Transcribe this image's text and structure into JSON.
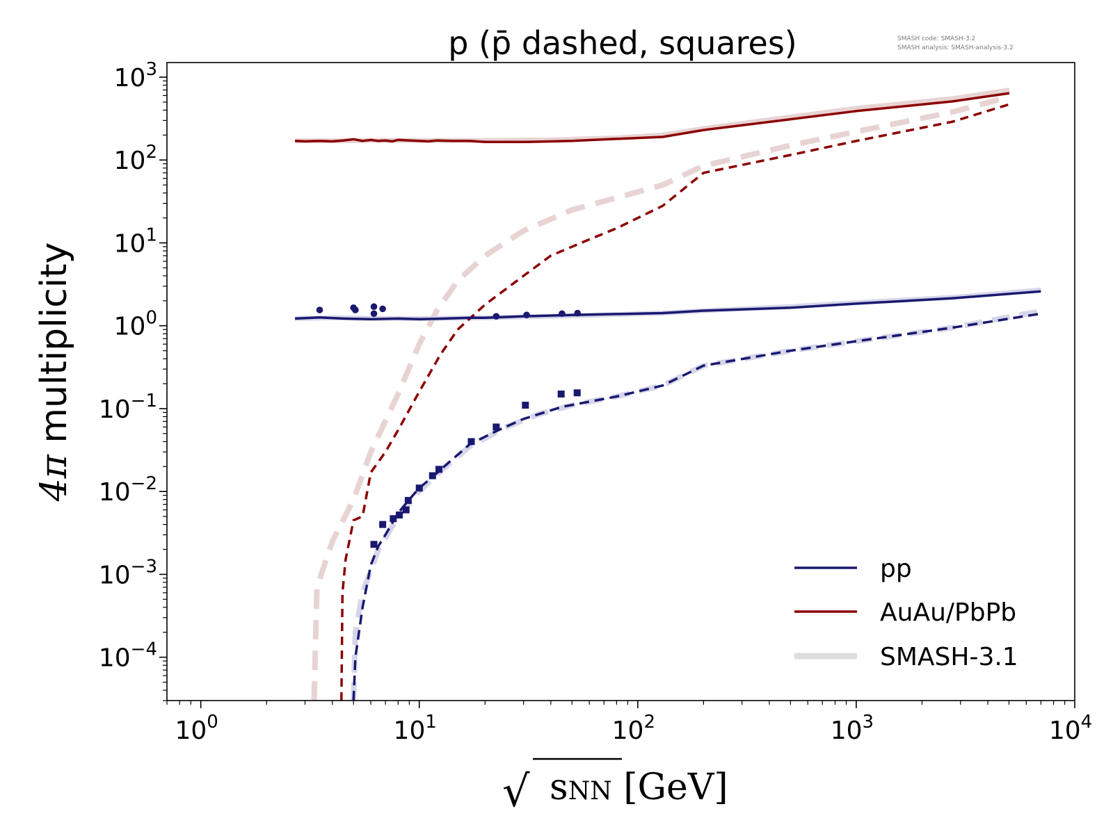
{
  "chart_data": {
    "type": "line",
    "title": "p (p̄ dashed, squares)",
    "credits": [
      "SMASH code:      SMASH-3.2",
      "SMASH analysis:  SMASH-analysis-3.2"
    ],
    "xlabel": {
      "root": "√",
      "var": "s",
      "sub": "NN",
      "unit": " [GeV]"
    },
    "ylabel": {
      "main": "4π",
      "rest": " multiplicity"
    },
    "xscale": "log",
    "yscale": "log",
    "xlim": [
      0.7,
      10000
    ],
    "ylim": [
      3e-05,
      1500
    ],
    "xticks": [
      {
        "value": 1,
        "base": "10",
        "exp": "0"
      },
      {
        "value": 10,
        "base": "10",
        "exp": "1"
      },
      {
        "value": 100,
        "base": "10",
        "exp": "2"
      },
      {
        "value": 1000,
        "base": "10",
        "exp": "3"
      },
      {
        "value": 10000,
        "base": "10",
        "exp": "4"
      }
    ],
    "yticks": [
      {
        "value": 0.0001,
        "base": "10",
        "exp": "−4"
      },
      {
        "value": 0.001,
        "base": "10",
        "exp": "−3"
      },
      {
        "value": 0.01,
        "base": "10",
        "exp": "−2"
      },
      {
        "value": 0.1,
        "base": "10",
        "exp": "−1"
      },
      {
        "value": 1,
        "base": "10",
        "exp": "0"
      },
      {
        "value": 10,
        "base": "10",
        "exp": "1"
      },
      {
        "value": 100,
        "base": "10",
        "exp": "2"
      },
      {
        "value": 1000,
        "base": "10",
        "exp": "3"
      }
    ],
    "legend": {
      "placement": "lower-right",
      "entries": [
        {
          "label": "pp",
          "color": "#191970",
          "width": 3.5
        },
        {
          "label": "AuAu/PbPb",
          "color": "#8b0000",
          "width": 3.5
        },
        {
          "label": "SMASH-3.1",
          "color": "#dddddd",
          "width": 9
        }
      ]
    },
    "series": [
      {
        "role": "smash31-auau-p",
        "color": "#e8d3d3",
        "width": 7,
        "dash": "",
        "x": [
          2.7,
          4.0,
          6.0,
          10,
          20,
          40,
          80,
          130,
          200,
          500,
          1000,
          2760,
          5020
        ],
        "y": [
          170,
          170,
          172,
          172,
          172,
          175,
          185,
          200,
          240,
          330,
          420,
          550,
          700
        ]
      },
      {
        "role": "smash31-auau-pbar",
        "color": "#e8d3d3",
        "width": 8,
        "dash": "28,16",
        "x": [
          3.3,
          3.4,
          4.0,
          5.0,
          6.0,
          8.0,
          10,
          12,
          15,
          20,
          30,
          50,
          80,
          130,
          200,
          500,
          1000,
          2760,
          5020
        ],
        "y": [
          3e-05,
          0.0007,
          0.0025,
          0.008,
          0.03,
          0.15,
          0.6,
          1.5,
          3.5,
          7,
          14,
          25,
          35,
          50,
          85,
          150,
          220,
          380,
          580
        ]
      },
      {
        "role": "smash31-pp-p",
        "color": "#d6d6ea",
        "width": 7,
        "dash": "",
        "x": [
          2.7,
          4.0,
          6.0,
          10,
          20,
          50,
          130,
          200,
          500,
          1000,
          2760,
          7000
        ],
        "y": [
          1.22,
          1.25,
          1.23,
          1.22,
          1.25,
          1.32,
          1.42,
          1.52,
          1.7,
          1.9,
          2.2,
          2.7
        ]
      },
      {
        "role": "smash31-pp-pbar",
        "color": "#d6d6ea",
        "width": 8,
        "dash": "26,14",
        "x": [
          5.0,
          5.1,
          5.5,
          6.5,
          8.0,
          10,
          12,
          17,
          25,
          35,
          50,
          80,
          130,
          200,
          500,
          1000,
          2760,
          7000
        ],
        "y": [
          3e-05,
          0.0002,
          0.0006,
          0.002,
          0.005,
          0.01,
          0.016,
          0.035,
          0.06,
          0.085,
          0.11,
          0.14,
          0.19,
          0.33,
          0.5,
          0.65,
          0.95,
          1.5
        ]
      },
      {
        "role": "auau-p",
        "color": "#8b0000",
        "width": 3.5,
        "dash": "",
        "x": [
          2.7,
          3.0,
          3.5,
          4.0,
          4.5,
          5.0,
          5.5,
          6.0,
          6.5,
          7.0,
          7.5,
          8.0,
          9.0,
          10,
          11,
          12,
          14,
          17,
          20,
          30,
          50,
          80,
          130,
          200,
          500,
          1000,
          2760,
          5020
        ],
        "y": [
          170,
          168,
          170,
          168,
          172,
          178,
          170,
          175,
          170,
          172,
          168,
          175,
          172,
          170,
          168,
          172,
          170,
          170,
          165,
          165,
          170,
          180,
          190,
          230,
          310,
          390,
          510,
          640
        ]
      },
      {
        "role": "auau-pbar",
        "color": "#8b0000",
        "width": 3.5,
        "dash": "12,8",
        "x": [
          4.4,
          4.45,
          4.6,
          5.0,
          5.5,
          6.0,
          7.0,
          8.0,
          10,
          12.5,
          15,
          20,
          30,
          40,
          60,
          80,
          130,
          200,
          500,
          1000,
          2760,
          5020
        ],
        "y": [
          3e-05,
          0.0006,
          0.0015,
          0.0045,
          0.005,
          0.017,
          0.03,
          0.055,
          0.16,
          0.45,
          0.9,
          1.8,
          4,
          7,
          11,
          15,
          28,
          70,
          115,
          170,
          290,
          470
        ]
      },
      {
        "role": "pp-p",
        "color": "#191970",
        "width": 3.5,
        "dash": "",
        "x": [
          2.7,
          3.5,
          4.5,
          6.0,
          8.0,
          10,
          13,
          17,
          20,
          30,
          50,
          130,
          200,
          500,
          1000,
          2760,
          7000
        ],
        "y": [
          1.22,
          1.26,
          1.22,
          1.2,
          1.22,
          1.2,
          1.22,
          1.25,
          1.25,
          1.3,
          1.35,
          1.42,
          1.52,
          1.65,
          1.85,
          2.15,
          2.6
        ]
      },
      {
        "role": "pp-pbar",
        "color": "#191970",
        "width": 3.5,
        "dash": "14,8",
        "x": [
          5.0,
          5.1,
          5.5,
          6.0,
          6.5,
          7.0,
          8.0,
          9.0,
          10,
          11.5,
          13,
          17,
          23,
          30,
          45,
          80,
          130,
          200,
          500,
          1000,
          2760,
          7000
        ],
        "y": [
          3e-05,
          0.0001,
          0.0004,
          0.0013,
          0.0022,
          0.003,
          0.0055,
          0.008,
          0.011,
          0.015,
          0.02,
          0.037,
          0.055,
          0.075,
          0.105,
          0.14,
          0.19,
          0.33,
          0.5,
          0.65,
          0.95,
          1.4
        ]
      }
    ],
    "markers": [
      {
        "role": "pp-p-data",
        "shape": "circle",
        "color": "#191970",
        "size": 4.8,
        "x": [
          3.5,
          5.0,
          5.1,
          6.2,
          6.2,
          6.8,
          22.5,
          31,
          45,
          53
        ],
        "y": [
          1.55,
          1.65,
          1.55,
          1.7,
          1.4,
          1.6,
          1.3,
          1.35,
          1.4,
          1.42
        ]
      },
      {
        "role": "pp-pbar-data",
        "shape": "square",
        "color": "#191970",
        "size": 10,
        "x": [
          6.2,
          6.8,
          7.6,
          8.1,
          8.7,
          8.9,
          10,
          11.5,
          12.3,
          17.3,
          22.5,
          30.6,
          44.6,
          52.8
        ],
        "y": [
          0.0023,
          0.004,
          0.0047,
          0.0052,
          0.006,
          0.0078,
          0.011,
          0.0155,
          0.0185,
          0.04,
          0.06,
          0.11,
          0.15,
          0.155
        ]
      }
    ]
  }
}
